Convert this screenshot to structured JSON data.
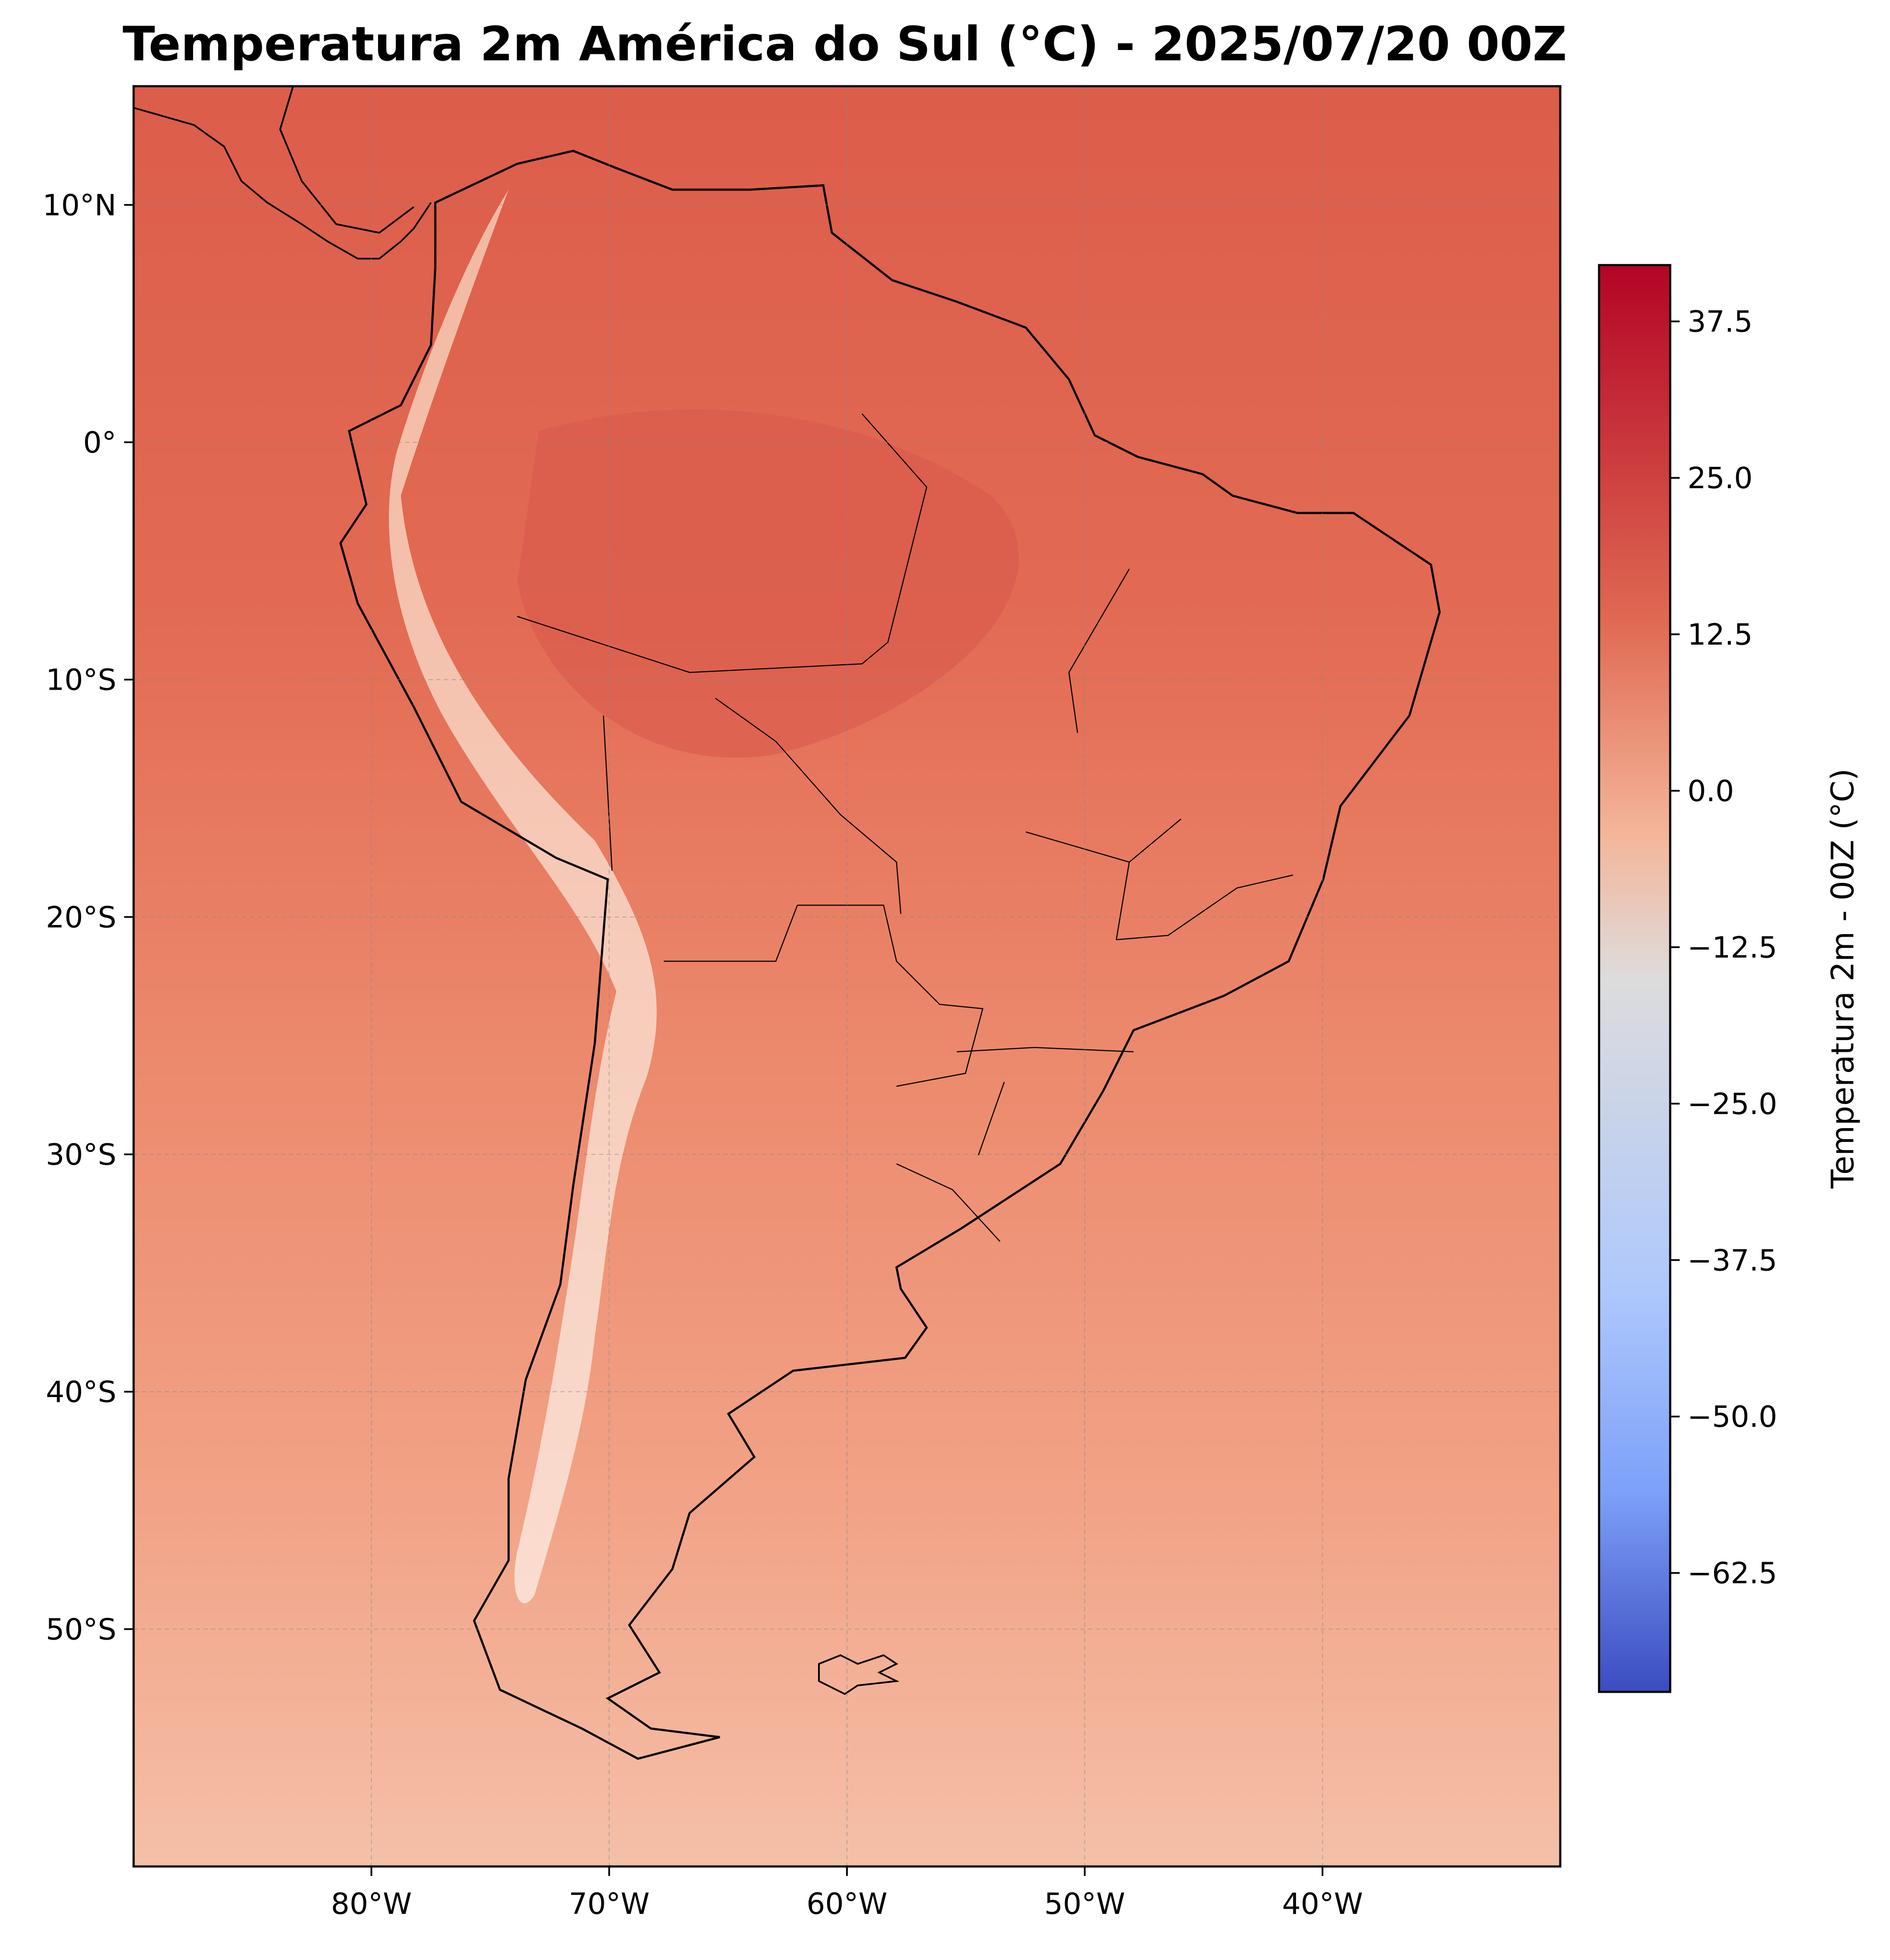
{
  "title": "Temperatura 2m América do Sul (°C) - 2025/07/20 00Z",
  "map": {
    "lon_range": [
      -90,
      -30
    ],
    "lat_range": [
      -60,
      15
    ],
    "lat_ticks": [
      {
        "value": 10,
        "label": "10°N"
      },
      {
        "value": 0,
        "label": "0°"
      },
      {
        "value": -10,
        "label": "10°S"
      },
      {
        "value": -20,
        "label": "20°S"
      },
      {
        "value": -30,
        "label": "30°S"
      },
      {
        "value": -40,
        "label": "40°S"
      },
      {
        "value": -50,
        "label": "50°S"
      }
    ],
    "lon_ticks": [
      {
        "value": -80,
        "label": "80°W"
      },
      {
        "value": -70,
        "label": "70°W"
      },
      {
        "value": -60,
        "label": "60°W"
      },
      {
        "value": -50,
        "label": "50°W"
      },
      {
        "value": -40,
        "label": "40°W"
      }
    ],
    "gridlines": true,
    "background_color": "#e06a52"
  },
  "colorbar": {
    "label": "Temperatura 2m - 00Z (°C)",
    "range": [
      -72,
      42
    ],
    "colormap": "coolwarm",
    "ticks": [
      {
        "value": 37.5,
        "label": "37.5"
      },
      {
        "value": 25,
        "label": "25.0"
      },
      {
        "value": 12.5,
        "label": "12.5"
      },
      {
        "value": 0,
        "label": "0.0"
      },
      {
        "value": -12.5,
        "label": "−12.5"
      },
      {
        "value": -25,
        "label": "−25.0"
      },
      {
        "value": -37.5,
        "label": "−37.5"
      },
      {
        "value": -50,
        "label": "−50.0"
      },
      {
        "value": -62.5,
        "label": "−62.5"
      }
    ],
    "colors": {
      "top": "#b40426",
      "upper": "#e06a52",
      "mid": "#dddcdc",
      "lower": "#8db0fe",
      "bottom": "#3b4cc0"
    }
  }
}
